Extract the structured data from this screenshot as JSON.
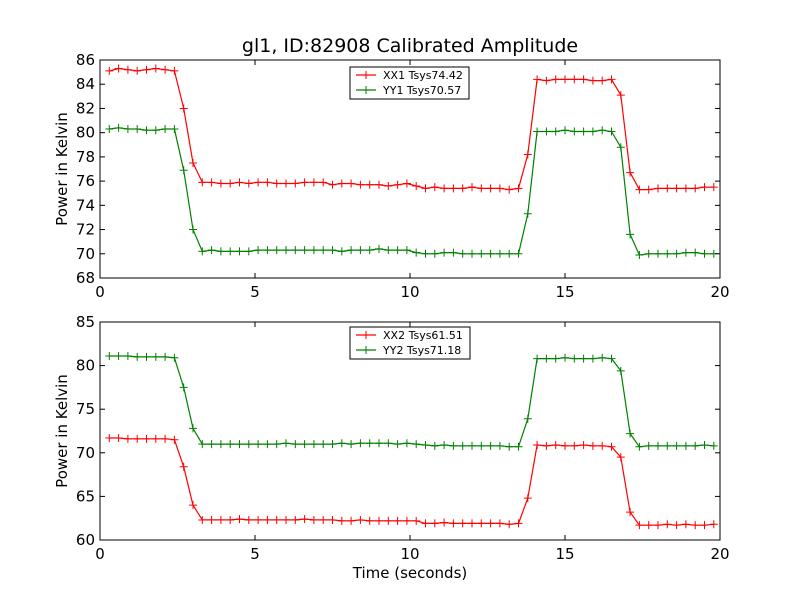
{
  "figure": {
    "title": "gl1, ID:82908 Calibrated Amplitude",
    "xlabel": "Time (seconds)"
  },
  "chart_data": [
    {
      "type": "line",
      "title": "gl1, ID:82908 Calibrated Amplitude",
      "xlabel": "",
      "ylabel": "Power in Kelvin",
      "xlim": [
        0,
        20
      ],
      "ylim": [
        68,
        86
      ],
      "xticks": [
        "0",
        "5",
        "10",
        "15",
        "20"
      ],
      "yticks": [
        "68",
        "70",
        "72",
        "74",
        "76",
        "78",
        "80",
        "82",
        "84",
        "86"
      ],
      "legend_position": "top-center",
      "x": [
        0.3,
        0.6,
        0.9,
        1.2,
        1.5,
        1.8,
        2.1,
        2.4,
        2.7,
        3.0,
        3.3,
        3.6,
        3.9,
        4.2,
        4.5,
        4.8,
        5.1,
        5.4,
        5.7,
        6.0,
        6.3,
        6.6,
        6.9,
        7.2,
        7.5,
        7.8,
        8.1,
        8.4,
        8.7,
        9.0,
        9.3,
        9.6,
        9.9,
        10.2,
        10.5,
        10.8,
        11.1,
        11.4,
        11.7,
        12.0,
        12.3,
        12.6,
        12.9,
        13.2,
        13.5,
        13.8,
        14.1,
        14.4,
        14.7,
        15.0,
        15.3,
        15.6,
        15.9,
        16.2,
        16.5,
        16.8,
        17.1,
        17.4,
        17.7,
        18.0,
        18.3,
        18.6,
        18.9,
        19.2,
        19.5,
        19.8
      ],
      "series": [
        {
          "name": "XX1 Tsys74.42",
          "color": "#ff0000",
          "values": [
            85.1,
            85.3,
            85.2,
            85.1,
            85.2,
            85.3,
            85.2,
            85.1,
            82.0,
            77.5,
            75.9,
            75.9,
            75.8,
            75.8,
            75.9,
            75.8,
            75.9,
            75.9,
            75.8,
            75.8,
            75.8,
            75.9,
            75.9,
            75.9,
            75.7,
            75.8,
            75.8,
            75.7,
            75.7,
            75.7,
            75.6,
            75.7,
            75.8,
            75.6,
            75.4,
            75.5,
            75.4,
            75.4,
            75.4,
            75.5,
            75.4,
            75.4,
            75.4,
            75.3,
            75.4,
            78.2,
            84.4,
            84.3,
            84.4,
            84.4,
            84.4,
            84.4,
            84.3,
            84.3,
            84.4,
            83.1,
            76.7,
            75.3,
            75.3,
            75.4,
            75.4,
            75.4,
            75.4,
            75.4,
            75.5,
            75.5
          ]
        },
        {
          "name": "YY1 Tsys70.57",
          "color": "#008000",
          "values": [
            80.3,
            80.4,
            80.3,
            80.3,
            80.2,
            80.2,
            80.3,
            80.3,
            76.9,
            72.0,
            70.2,
            70.3,
            70.2,
            70.2,
            70.2,
            70.2,
            70.3,
            70.3,
            70.3,
            70.3,
            70.3,
            70.3,
            70.3,
            70.3,
            70.3,
            70.2,
            70.3,
            70.3,
            70.3,
            70.4,
            70.3,
            70.3,
            70.3,
            70.1,
            70.0,
            70.0,
            70.1,
            70.1,
            70.0,
            70.0,
            70.0,
            70.0,
            70.0,
            70.0,
            70.0,
            73.3,
            80.1,
            80.1,
            80.1,
            80.2,
            80.1,
            80.1,
            80.1,
            80.2,
            80.1,
            78.8,
            71.6,
            69.9,
            70.0,
            70.0,
            70.0,
            70.0,
            70.1,
            70.1,
            70.0,
            70.0
          ]
        }
      ]
    },
    {
      "type": "line",
      "title": "",
      "xlabel": "Time (seconds)",
      "ylabel": "Power in Kelvin",
      "xlim": [
        0,
        20
      ],
      "ylim": [
        60,
        85
      ],
      "xticks": [
        "0",
        "5",
        "10",
        "15",
        "20"
      ],
      "yticks": [
        "60",
        "65",
        "70",
        "75",
        "80",
        "85"
      ],
      "legend_position": "top-center",
      "x": [
        0.3,
        0.6,
        0.9,
        1.2,
        1.5,
        1.8,
        2.1,
        2.4,
        2.7,
        3.0,
        3.3,
        3.6,
        3.9,
        4.2,
        4.5,
        4.8,
        5.1,
        5.4,
        5.7,
        6.0,
        6.3,
        6.6,
        6.9,
        7.2,
        7.5,
        7.8,
        8.1,
        8.4,
        8.7,
        9.0,
        9.3,
        9.6,
        9.9,
        10.2,
        10.5,
        10.8,
        11.1,
        11.4,
        11.7,
        12.0,
        12.3,
        12.6,
        12.9,
        13.2,
        13.5,
        13.8,
        14.1,
        14.4,
        14.7,
        15.0,
        15.3,
        15.6,
        15.9,
        16.2,
        16.5,
        16.8,
        17.1,
        17.4,
        17.7,
        18.0,
        18.3,
        18.6,
        18.9,
        19.2,
        19.5,
        19.8
      ],
      "series": [
        {
          "name": "XX2 Tsys61.51",
          "color": "#ff0000",
          "values": [
            71.7,
            71.7,
            71.6,
            71.6,
            71.6,
            71.6,
            71.6,
            71.5,
            68.4,
            64.0,
            62.3,
            62.3,
            62.3,
            62.3,
            62.4,
            62.3,
            62.3,
            62.3,
            62.3,
            62.3,
            62.3,
            62.4,
            62.3,
            62.3,
            62.3,
            62.2,
            62.2,
            62.3,
            62.2,
            62.2,
            62.2,
            62.2,
            62.2,
            62.2,
            61.9,
            61.9,
            62.0,
            61.9,
            61.9,
            61.9,
            61.9,
            61.9,
            61.9,
            61.8,
            61.9,
            64.8,
            70.9,
            70.8,
            70.9,
            70.8,
            70.8,
            70.9,
            70.8,
            70.8,
            70.7,
            69.5,
            63.2,
            61.7,
            61.7,
            61.7,
            61.8,
            61.7,
            61.8,
            61.7,
            61.7,
            61.8
          ]
        },
        {
          "name": "YY2 Tsys71.18",
          "color": "#008000",
          "values": [
            81.1,
            81.1,
            81.1,
            81.0,
            81.0,
            81.0,
            81.0,
            80.9,
            77.5,
            72.8,
            71.0,
            71.0,
            71.0,
            71.0,
            71.0,
            71.0,
            71.0,
            71.0,
            71.0,
            71.1,
            71.0,
            71.0,
            71.0,
            71.0,
            71.0,
            71.1,
            71.0,
            71.1,
            71.1,
            71.1,
            71.1,
            71.0,
            71.1,
            71.0,
            70.9,
            70.8,
            70.9,
            70.8,
            70.8,
            70.8,
            70.8,
            70.8,
            70.8,
            70.7,
            70.7,
            73.9,
            80.8,
            80.8,
            80.8,
            80.9,
            80.8,
            80.8,
            80.8,
            80.9,
            80.8,
            79.4,
            72.2,
            70.7,
            70.8,
            70.8,
            70.8,
            70.8,
            70.8,
            70.8,
            70.9,
            70.8
          ]
        }
      ]
    }
  ]
}
